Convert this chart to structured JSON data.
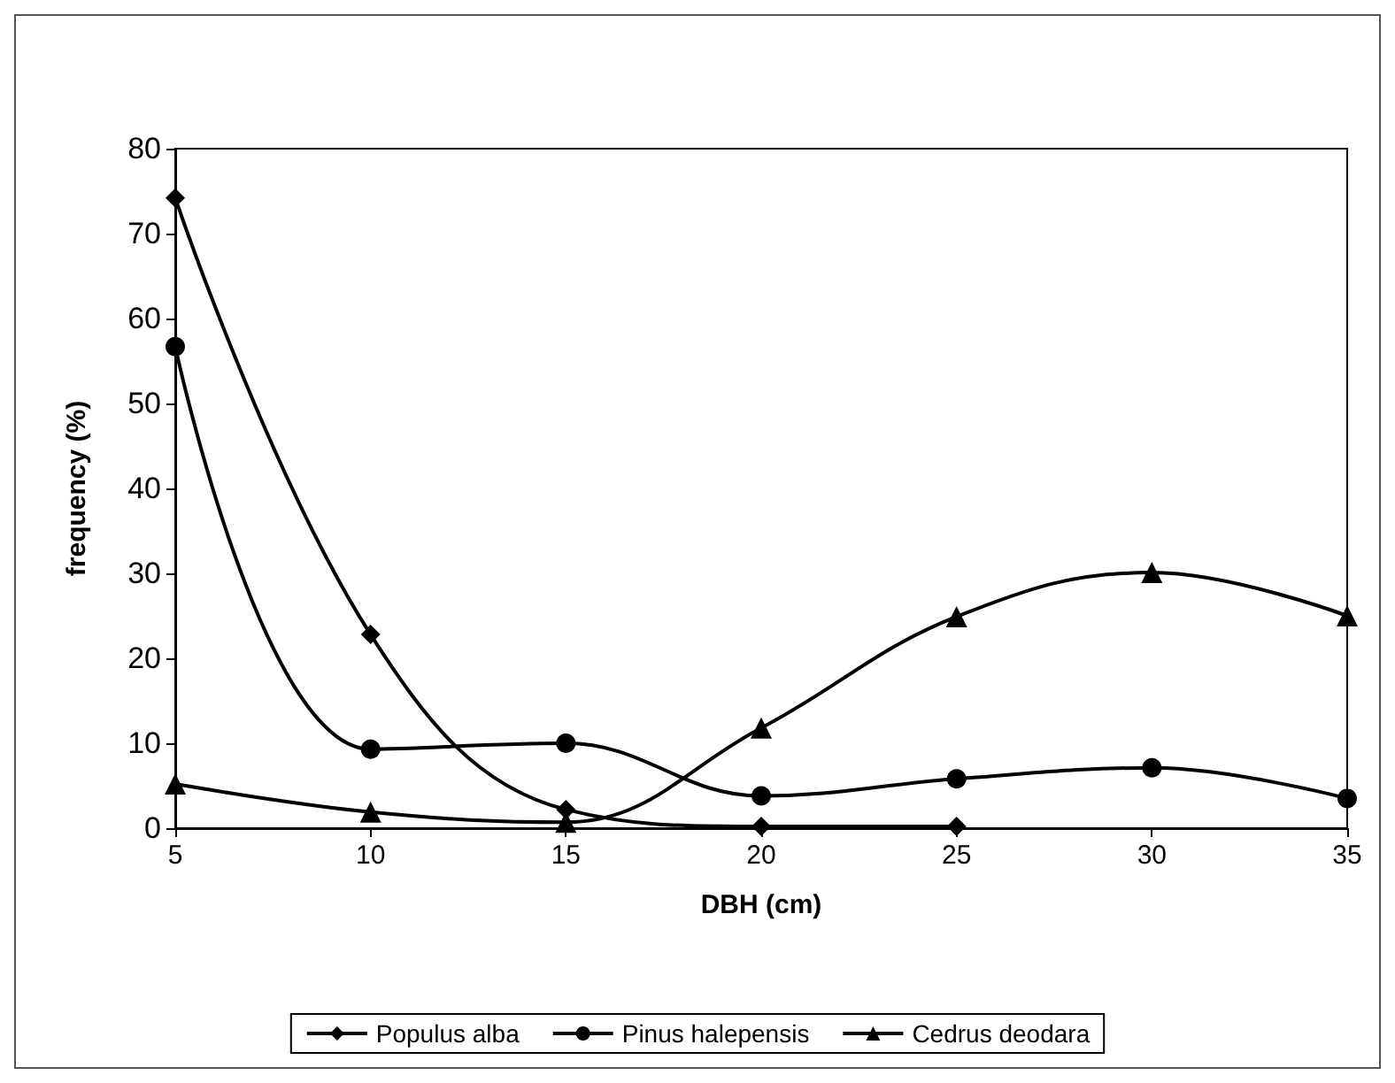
{
  "chart_data": {
    "type": "line",
    "xlabel": "DBH (cm)",
    "ylabel": "frequency (%)",
    "categories": [
      "5",
      "10",
      "15",
      "20",
      "25",
      "30",
      "35"
    ],
    "series": [
      {
        "name": "Populus alba",
        "color": "#000000",
        "marker": "diamond",
        "values": [
          74.2,
          22.8,
          2.2,
          0.2,
          0.2,
          null,
          null
        ]
      },
      {
        "name": "Pinus halepensis",
        "color": "#000000",
        "marker": "circle",
        "values": [
          56.7,
          9.3,
          10,
          3.8,
          5.8,
          7.1,
          3.5
        ]
      },
      {
        "name": "Cedrus deodara",
        "color": "#000000",
        "marker": "triangle",
        "values": [
          5.2,
          1.9,
          0.7,
          11.8,
          24.9,
          30.1,
          25
        ]
      }
    ],
    "ylim": [
      0,
      80
    ],
    "yticks": [
      0,
      10,
      20,
      30,
      40,
      50,
      60,
      70,
      80
    ],
    "grid": false,
    "legend": "bottom",
    "line_style": "solid"
  }
}
